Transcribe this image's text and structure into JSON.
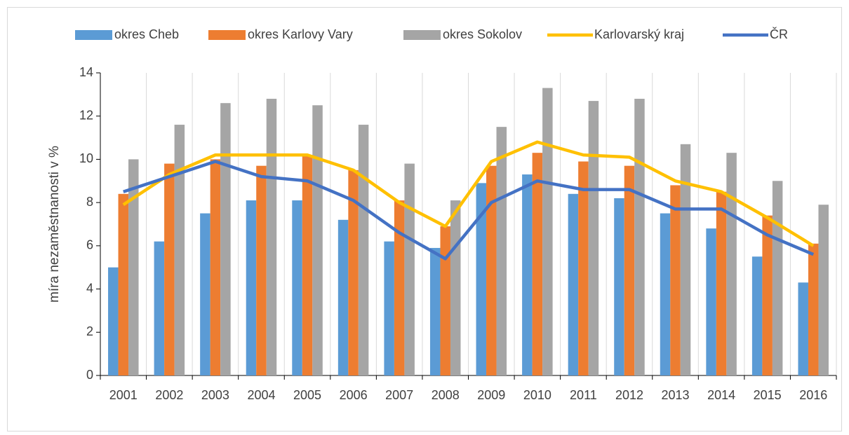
{
  "chart_data": {
    "type": "bar_line",
    "y_axis_label": "míra nezaměstnanosti v %",
    "categories": [
      "2001",
      "2002",
      "2003",
      "2004",
      "2005",
      "2006",
      "2007",
      "2008",
      "2009",
      "2010",
      "2011",
      "2012",
      "2013",
      "2014",
      "2015",
      "2016"
    ],
    "series": [
      {
        "name": "okres Cheb",
        "type": "bar",
        "color": "#5b9bd5",
        "values": [
          5.0,
          6.2,
          7.5,
          8.1,
          8.1,
          7.2,
          6.2,
          5.9,
          8.9,
          9.3,
          8.4,
          8.2,
          7.5,
          6.8,
          5.5,
          4.3
        ]
      },
      {
        "name": "okres Karlovy Vary",
        "type": "bar",
        "color": "#ed7d31",
        "values": [
          8.4,
          9.8,
          10.0,
          9.7,
          10.2,
          9.5,
          8.1,
          6.9,
          9.7,
          10.3,
          9.9,
          9.7,
          8.8,
          8.5,
          7.4,
          6.1
        ]
      },
      {
        "name": "okres Sokolov",
        "type": "bar",
        "color": "#a5a5a5",
        "values": [
          10.0,
          11.6,
          12.6,
          12.8,
          12.5,
          11.6,
          9.8,
          8.1,
          11.5,
          13.3,
          12.7,
          12.8,
          10.7,
          10.3,
          9.0,
          7.9
        ]
      },
      {
        "name": "Karlovarský kraj",
        "type": "line",
        "color": "#ffc000",
        "values": [
          7.9,
          9.3,
          10.2,
          10.2,
          10.2,
          9.5,
          8.0,
          6.9,
          9.9,
          10.8,
          10.2,
          10.1,
          9.0,
          8.5,
          7.3,
          6.0
        ]
      },
      {
        "name": "ČR",
        "type": "line",
        "color": "#4472c4",
        "values": [
          8.5,
          9.2,
          9.9,
          9.2,
          9.0,
          8.1,
          6.6,
          5.4,
          8.0,
          9.0,
          8.6,
          8.6,
          7.7,
          7.7,
          6.5,
          5.6
        ]
      }
    ],
    "ylim": [
      0,
      14
    ],
    "yticks": [
      0,
      2,
      4,
      6,
      8,
      10,
      12,
      14
    ],
    "grid": "x",
    "legend": "top"
  }
}
